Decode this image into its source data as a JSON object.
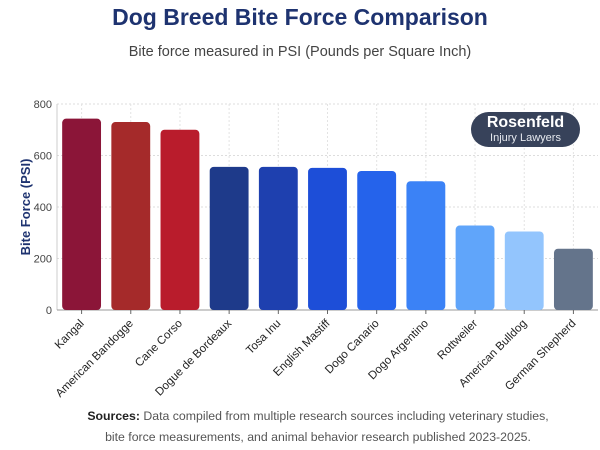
{
  "chart_data": {
    "type": "bar",
    "title": "Dog Breed Bite Force Comparison",
    "subtitle": "Bite force measured in PSI (Pounds per Square Inch)",
    "xlabel": "",
    "ylabel": "Bite Force (PSI)",
    "ylim": [
      0,
      800
    ],
    "yticks": [
      0,
      200,
      400,
      600,
      800
    ],
    "grid": true,
    "categories": [
      "Kangal",
      "American Bandogge",
      "Cane Corso",
      "Dogue de Bordeaux",
      "Tosa Inu",
      "English Mastiff",
      "Dogo Canario",
      "Dogo Argentino",
      "Rottweiler",
      "American Bulldog",
      "German Shepherd"
    ],
    "values": [
      743,
      730,
      700,
      556,
      556,
      552,
      540,
      500,
      328,
      305,
      238
    ],
    "colors": [
      "#8b1538",
      "#a52a2a",
      "#b91c2c",
      "#1e3a8a",
      "#1e40af",
      "#1d4ed8",
      "#2563eb",
      "#3b82f6",
      "#60a5fa",
      "#93c5fd",
      "#64748b",
      "#94a3b8"
    ]
  },
  "logo": {
    "line1": "Rosenfeld",
    "line2": "Injury Lawyers"
  },
  "sources": {
    "label": "Sources:",
    "text": "Data compiled from multiple research sources including veterinary studies, bite force measurements, and animal behavior research published 2023-2025."
  }
}
